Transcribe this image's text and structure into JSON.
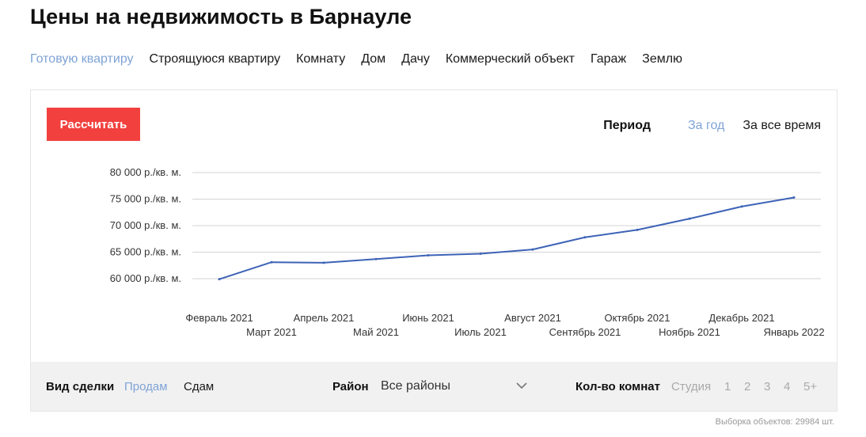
{
  "page": {
    "title": "Цены на недвижимость в Барнауле"
  },
  "tabs": [
    {
      "label": "Готовую квартиру",
      "active": true
    },
    {
      "label": "Строящуюся квартиру",
      "active": false
    },
    {
      "label": "Комнату",
      "active": false
    },
    {
      "label": "Дом",
      "active": false
    },
    {
      "label": "Дачу",
      "active": false
    },
    {
      "label": "Коммерческий объект",
      "active": false
    },
    {
      "label": "Гараж",
      "active": false
    },
    {
      "label": "Землю",
      "active": false
    }
  ],
  "card": {
    "calc_label": "Рассчитать",
    "period": {
      "label": "Период",
      "options": [
        {
          "label": "За год",
          "active": true
        },
        {
          "label": "За все время",
          "active": false
        }
      ]
    }
  },
  "chart_data": {
    "type": "line",
    "title": "",
    "xlabel": "",
    "ylabel": "",
    "ylim": [
      60000,
      80000
    ],
    "yticks": [
      {
        "value": 80000,
        "label": "80 000 р./кв. м."
      },
      {
        "value": 75000,
        "label": "75 000 р./кв. м."
      },
      {
        "value": 70000,
        "label": "70 000 р./кв. м."
      },
      {
        "value": 65000,
        "label": "65 000 р./кв. м."
      },
      {
        "value": 60000,
        "label": "60 000 р./кв. м."
      }
    ],
    "categories": [
      "Февраль 2021",
      "Март 2021",
      "Апрель 2021",
      "Май 2021",
      "Июнь 2021",
      "Июль 2021",
      "Август 2021",
      "Сентябрь 2021",
      "Октябрь 2021",
      "Ноябрь 2021",
      "Декабрь 2021",
      "Январь 2022"
    ],
    "values": [
      59900,
      63100,
      63000,
      63700,
      64400,
      64700,
      65500,
      67800,
      69200,
      71300,
      73600,
      75300
    ],
    "grid": true,
    "line_color": "#3d63b7"
  },
  "filters": {
    "deal_label": "Вид сделки",
    "deal_options": [
      {
        "label": "Продам",
        "active": true
      },
      {
        "label": "Сдам",
        "active": false
      }
    ],
    "district_label": "Район",
    "district_value": "Все районы",
    "rooms_label": "Кол-во комнат",
    "rooms_options": [
      "Студия",
      "1",
      "2",
      "3",
      "4",
      "5+"
    ]
  },
  "footer": {
    "count_text": "Выборка объектов: 29984 шт."
  }
}
